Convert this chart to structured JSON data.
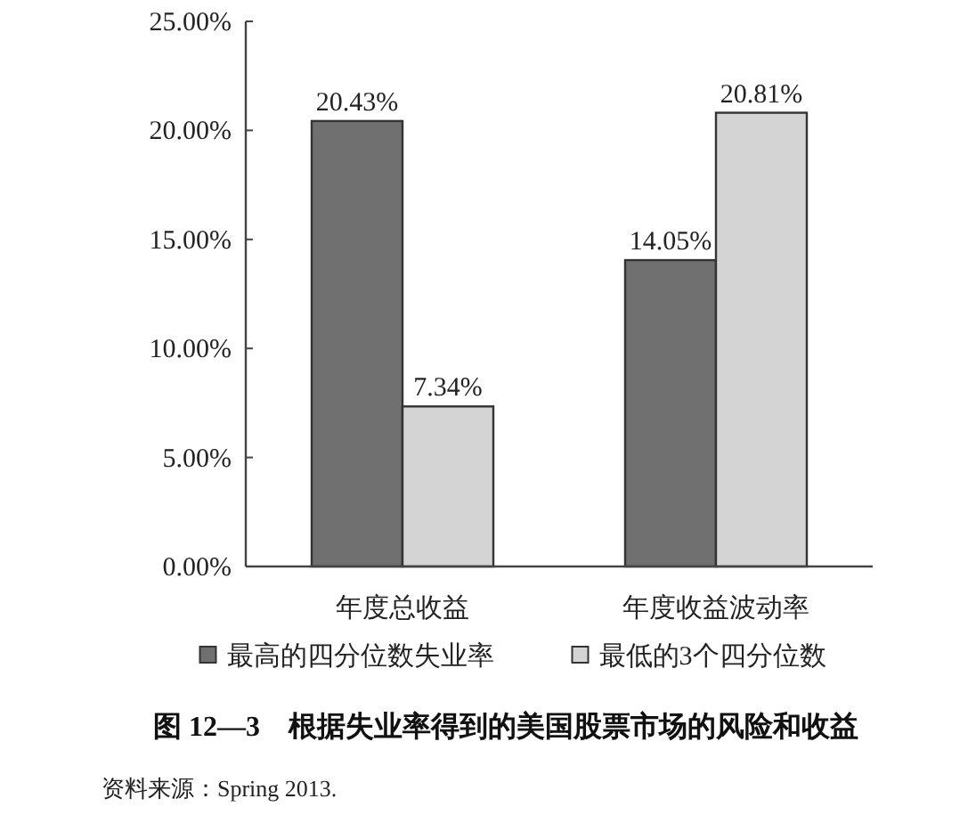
{
  "chart_data": {
    "type": "bar",
    "title": "图 12—3　根据失业率得到的美国股票市场的风险和收益",
    "categories": [
      "年度总收益",
      "年度收益波动率"
    ],
    "series": [
      {
        "name": "最高的四分位数失业率",
        "color": "#707070",
        "values": [
          20.43,
          14.05
        ],
        "value_labels": [
          "20.43%",
          "14.05%"
        ]
      },
      {
        "name": "最低的3个四分位数",
        "color": "#d4d4d4",
        "values": [
          7.34,
          20.81
        ],
        "value_labels": [
          "7.34%",
          "20.81%"
        ]
      }
    ],
    "ylim": [
      0,
      25
    ],
    "yticks": [
      {
        "value": 0,
        "label": "0.00%"
      },
      {
        "value": 5,
        "label": "5.00%"
      },
      {
        "value": 10,
        "label": "10.00%"
      },
      {
        "value": 15,
        "label": "15.00%"
      },
      {
        "value": 20,
        "label": "20.00%"
      },
      {
        "value": 25,
        "label": "25.00%"
      }
    ],
    "grid": false,
    "legend": "bottom",
    "annotations": [
      "资料来源：Spring 2013."
    ]
  }
}
